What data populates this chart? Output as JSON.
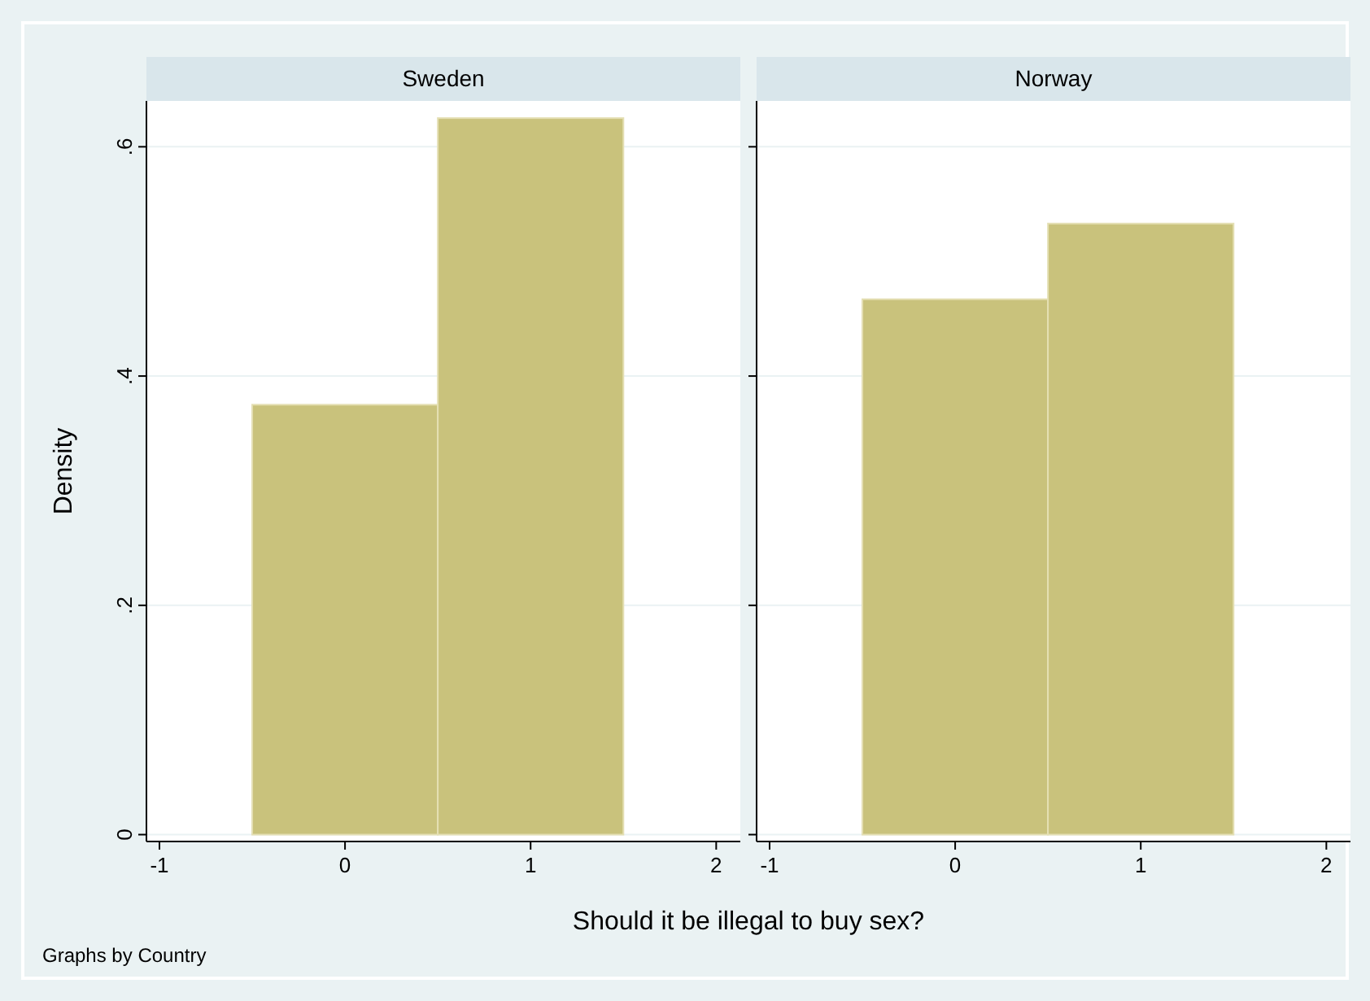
{
  "chart_data": [
    {
      "type": "histogram",
      "title": "Sweden",
      "bins": [
        -0.5,
        0.5,
        1.5
      ],
      "values": [
        0.375,
        0.625
      ],
      "color": "#c9c27c",
      "xlim": [
        -1.07,
        2.13
      ],
      "xticks": [
        -1,
        0,
        1,
        2
      ],
      "ylim": [
        -0.006,
        0.64
      ],
      "yticks": [
        {
          "value": 0,
          "label": "0"
        },
        {
          "value": 0.2,
          "label": ".2"
        },
        {
          "value": 0.4,
          "label": ".4"
        },
        {
          "value": 0.6,
          "label": ".6"
        }
      ],
      "grid": "y",
      "ylabel": "Density",
      "xlabel": "Should it be illegal to buy sex?",
      "annotations": [
        "Graphs by Country"
      ]
    },
    {
      "type": "histogram",
      "title": "Norway",
      "bins": [
        -0.5,
        0.5,
        1.5
      ],
      "values": [
        0.467,
        0.533
      ],
      "color": "#c9c27c",
      "xlim": [
        -1.07,
        2.13
      ],
      "xticks": [
        -1,
        0,
        1,
        2
      ],
      "ylim": [
        -0.006,
        0.64
      ],
      "yticks": [
        {
          "value": 0,
          "label": null
        },
        {
          "value": 0.2,
          "label": null
        },
        {
          "value": 0.4,
          "label": null
        },
        {
          "value": 0.6,
          "label": null
        }
      ],
      "grid": "y",
      "tick_labels": "x"
    }
  ]
}
